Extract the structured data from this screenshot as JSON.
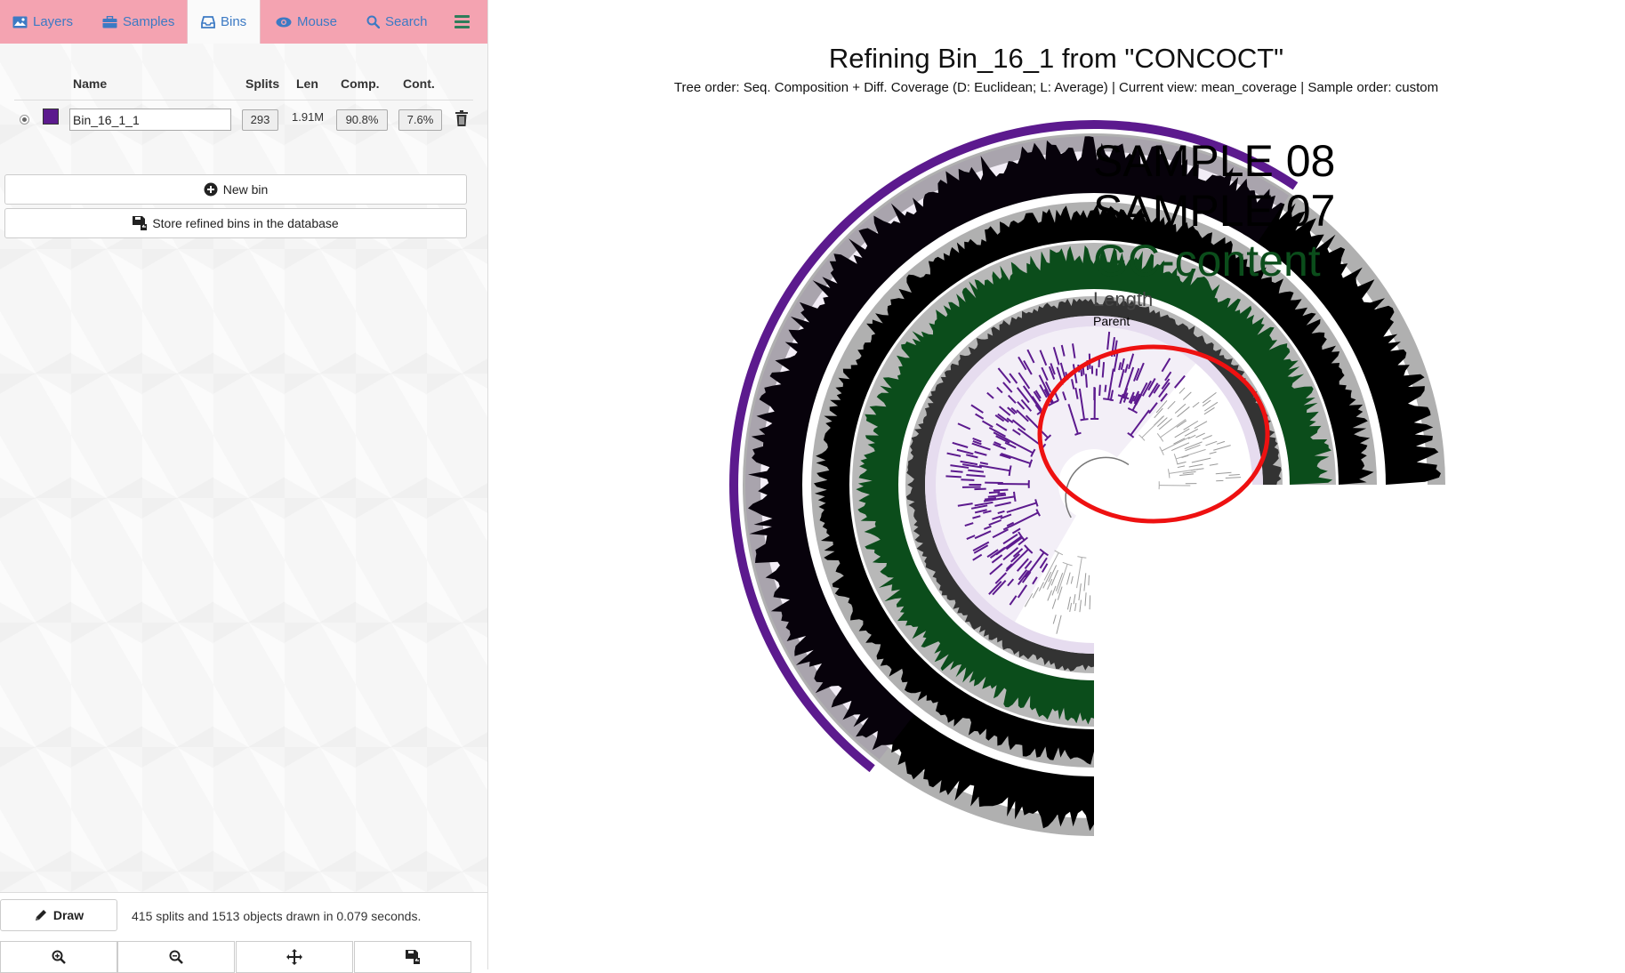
{
  "tabs": [
    {
      "label": "Layers",
      "icon": "image-icon",
      "active": false
    },
    {
      "label": "Samples",
      "icon": "briefcase-icon",
      "active": false
    },
    {
      "label": "Bins",
      "icon": "inbox-icon",
      "active": true
    },
    {
      "label": "Mouse",
      "icon": "eye-icon",
      "active": false
    },
    {
      "label": "Search",
      "icon": "search-icon",
      "active": false
    }
  ],
  "bins_table": {
    "headers": {
      "name": "Name",
      "splits": "Splits",
      "len": "Len",
      "comp": "Comp.",
      "cont": "Cont."
    },
    "rows": [
      {
        "name": "Bin_16_1_1",
        "color": "#5c1a8e",
        "splits": "293",
        "len": "1.91M",
        "comp": "90.8%",
        "cont": "7.6%"
      }
    ]
  },
  "buttons": {
    "new_bin": "New bin",
    "store": "Store refined bins in the database",
    "draw": "Draw"
  },
  "status": "415 splits and 1513 objects drawn in 0.079 seconds.",
  "canvas": {
    "title": "Refining Bin_16_1 from \"CONCOCT\"",
    "subtitle": "Tree order: Seq. Composition + Diff. Coverage (D: Euclidean; L: Average) | Current view: mean_coverage | Sample order: custom"
  },
  "layers": [
    {
      "label": "SAMPLE 08",
      "color": "#000000"
    },
    {
      "label": "SAMPLE 07",
      "color": "#000000"
    },
    {
      "label": "GC-content",
      "color": "#0b4d1b"
    },
    {
      "label": "Length",
      "color": "#444444"
    },
    {
      "label": "Parent",
      "color": "#000000"
    }
  ],
  "colors": {
    "tab_bar": "#f4a3b1",
    "tab_text": "#3c7ac4",
    "bin_color": "#5c1a8e",
    "highlight_circle": "#ee1111"
  }
}
